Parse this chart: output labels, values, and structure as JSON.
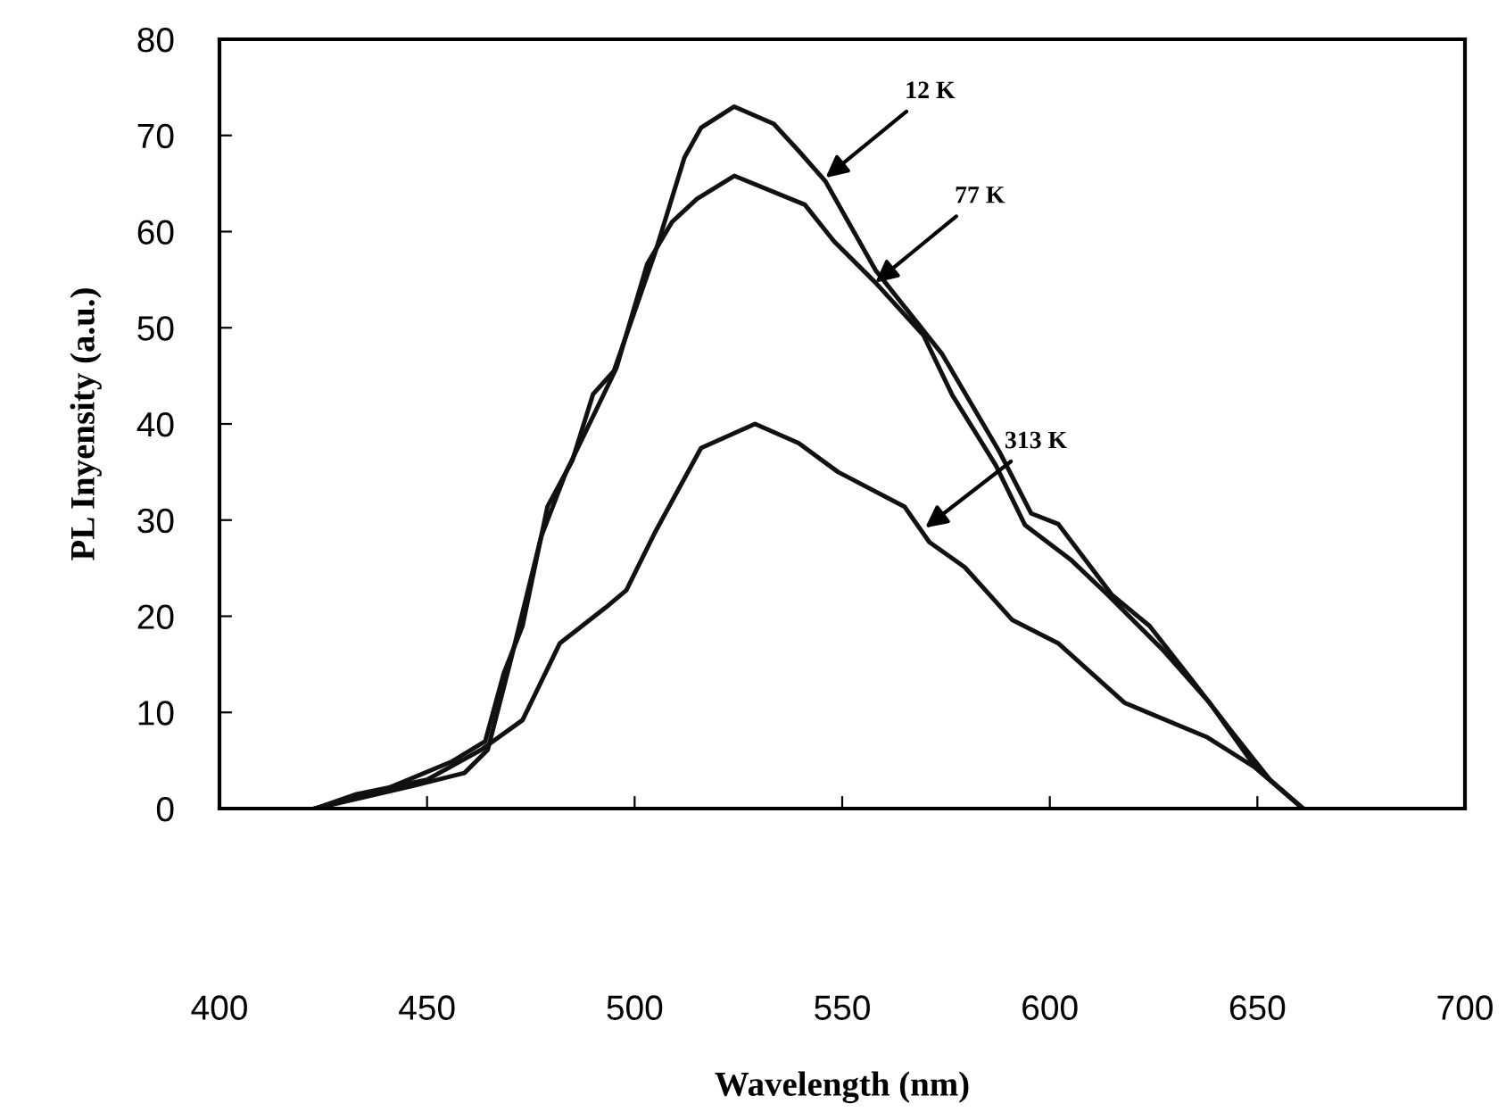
{
  "chart_data": {
    "type": "line",
    "xlabel": "Wavelength (nm)",
    "ylabel": "PL Inyensity (a.u.)",
    "xlim": [
      400,
      700
    ],
    "xticks": [
      400,
      450,
      500,
      550,
      600,
      650,
      700
    ],
    "ylim": [
      0,
      80
    ],
    "yticks": [
      0,
      10,
      20,
      30,
      40,
      50,
      60,
      70,
      80
    ],
    "grid": false,
    "legend": false,
    "marker": "none",
    "line_style": "solid",
    "series": [
      {
        "color": "#111111",
        "x": [
          423,
          440.5,
          456,
          464,
          468.5,
          473,
          479,
          485,
          490,
          495,
          505,
          512,
          516,
          524,
          533.5,
          539.5,
          546,
          558,
          574,
          588,
          595.5,
          602,
          615,
          624,
          634,
          644,
          653,
          661
        ],
        "values": [
          0,
          2.1,
          4.9,
          7.0,
          14.1,
          19.0,
          31.4,
          36.2,
          43.1,
          45.5,
          57.9,
          67.7,
          70.8,
          73.0,
          71.2,
          68.4,
          65.2,
          56,
          47.3,
          37,
          30.7,
          29.6,
          22.2,
          19,
          13.5,
          7.9,
          3,
          0
        ]
      },
      {
        "color": "#111111",
        "x": [
          423,
          447,
          459,
          464.6,
          470.5,
          477.5,
          483.5,
          495.6,
          503,
          509,
          515,
          524,
          541,
          548,
          558,
          569.6,
          576.5,
          587,
          594,
          605,
          614,
          627,
          638.5,
          649.7,
          661
        ],
        "values": [
          0,
          2.4,
          3.7,
          6.1,
          16,
          28.3,
          35,
          45.8,
          56.6,
          61,
          63.4,
          65.8,
          62.8,
          59,
          54.7,
          49.2,
          43,
          35.7,
          29.5,
          25.9,
          22.2,
          16.6,
          11,
          4.2,
          0
        ]
      },
      {
        "color": "#111111",
        "x": [
          423,
          433,
          450,
          463,
          473,
          482,
          493,
          498,
          505,
          516,
          529,
          539.5,
          549,
          565,
          571,
          579.5,
          591,
          602,
          618,
          638,
          649.7,
          661
        ],
        "values": [
          0,
          1.5,
          3,
          6.1,
          9.2,
          17.2,
          20.9,
          22.7,
          28.8,
          37.5,
          40,
          38,
          35,
          31.4,
          27.7,
          25.1,
          19.6,
          17.2,
          11,
          7.4,
          4.2,
          0
        ]
      }
    ],
    "annotations": [
      {
        "text": "12 K",
        "x": 546,
        "y": 65.6
      },
      {
        "text": "77 K",
        "x": 558,
        "y": 54.7
      },
      {
        "text": "313 K",
        "x": 570,
        "y": 29.2
      }
    ]
  }
}
